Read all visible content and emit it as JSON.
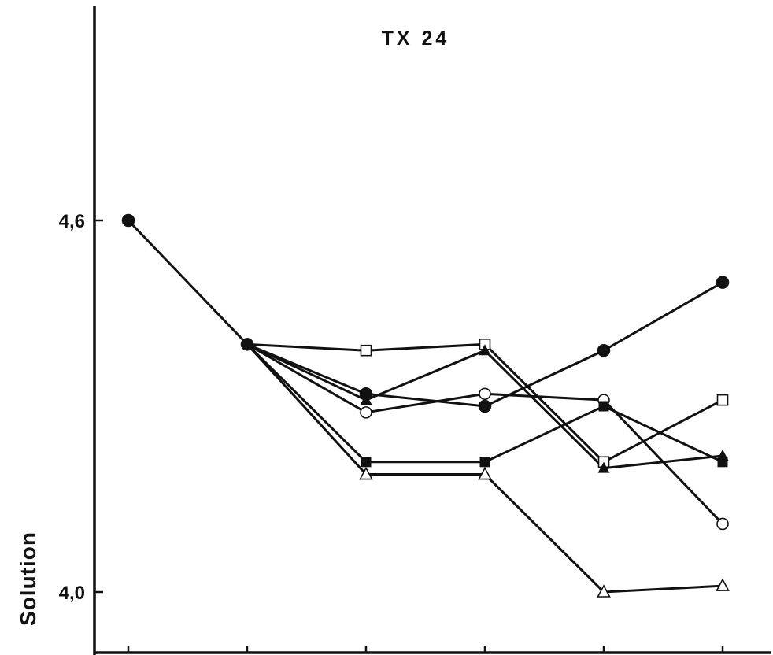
{
  "chart_data": {
    "type": "line",
    "title": "TX 24",
    "ylabel": "Solution",
    "xlabel": "",
    "ylim": [
      3.96,
      4.92
    ],
    "yticks": [
      {
        "value": 4.6,
        "label": "4,6"
      },
      {
        "value": 4.0,
        "label": "4,0"
      }
    ],
    "x": [
      1,
      2,
      3,
      4,
      5,
      6
    ],
    "grid": false,
    "series": [
      {
        "marker": "filled-circle",
        "values": [
          4.6,
          4.4,
          4.32,
          4.3,
          4.39,
          4.5
        ]
      },
      {
        "marker": "open-square",
        "values": [
          null,
          4.4,
          4.39,
          4.4,
          4.21,
          4.31
        ]
      },
      {
        "marker": "filled-triangle",
        "values": [
          null,
          4.4,
          4.31,
          4.39,
          4.2,
          4.22
        ]
      },
      {
        "marker": "open-circle",
        "values": [
          null,
          4.4,
          4.29,
          4.32,
          4.31,
          4.11
        ]
      },
      {
        "marker": "filled-square",
        "values": [
          null,
          4.4,
          4.21,
          4.21,
          4.3,
          4.21
        ]
      },
      {
        "marker": "open-triangle",
        "values": [
          null,
          4.4,
          4.19,
          4.19,
          4.0,
          4.01
        ]
      }
    ]
  }
}
